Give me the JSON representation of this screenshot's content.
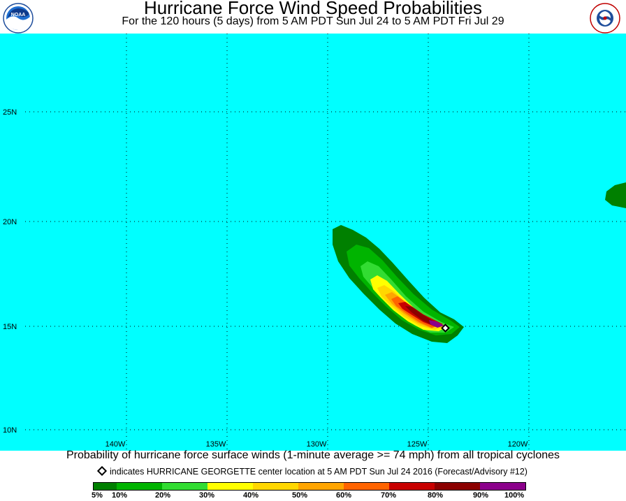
{
  "header": {
    "title": "Hurricane Force Wind Speed Probabilities",
    "subtitle": "For the 120 hours (5 days) from 5 AM PDT Sun Jul 24 to 5 AM PDT Fri Jul 29",
    "left_logo": "noaa-logo",
    "left_logo_text": "NOAA",
    "right_logo": "national-weather-service-logo",
    "right_logo_text": "NATIONAL WEATHER SERVICE"
  },
  "map": {
    "background_color": "#00ffff",
    "lat_labels": [
      "25N",
      "20N",
      "15N",
      "10N"
    ],
    "lon_labels": [
      "140W",
      "135W",
      "130W",
      "125W",
      "120W"
    ],
    "storm_marker": "storm-center-diamond"
  },
  "footer": {
    "caption": "Probability of hurricane force surface winds (1-minute average >= 74 mph) from all tropical cyclones",
    "storm_note": "indicates HURRICANE GEORGETTE center location at 5 AM PDT Sun Jul 24 2016 (Forecast/Advisory #12)"
  },
  "legend": {
    "colors": [
      "#008000",
      "#00b400",
      "#32dc32",
      "#ffff00",
      "#ffd700",
      "#ffa500",
      "#ff6400",
      "#c80000",
      "#8b0000",
      "#8b008b"
    ],
    "labels": [
      "5%",
      "10%",
      "20%",
      "30%",
      "40%",
      "50%",
      "60%",
      "70%",
      "80%",
      "90%",
      "100%"
    ]
  }
}
